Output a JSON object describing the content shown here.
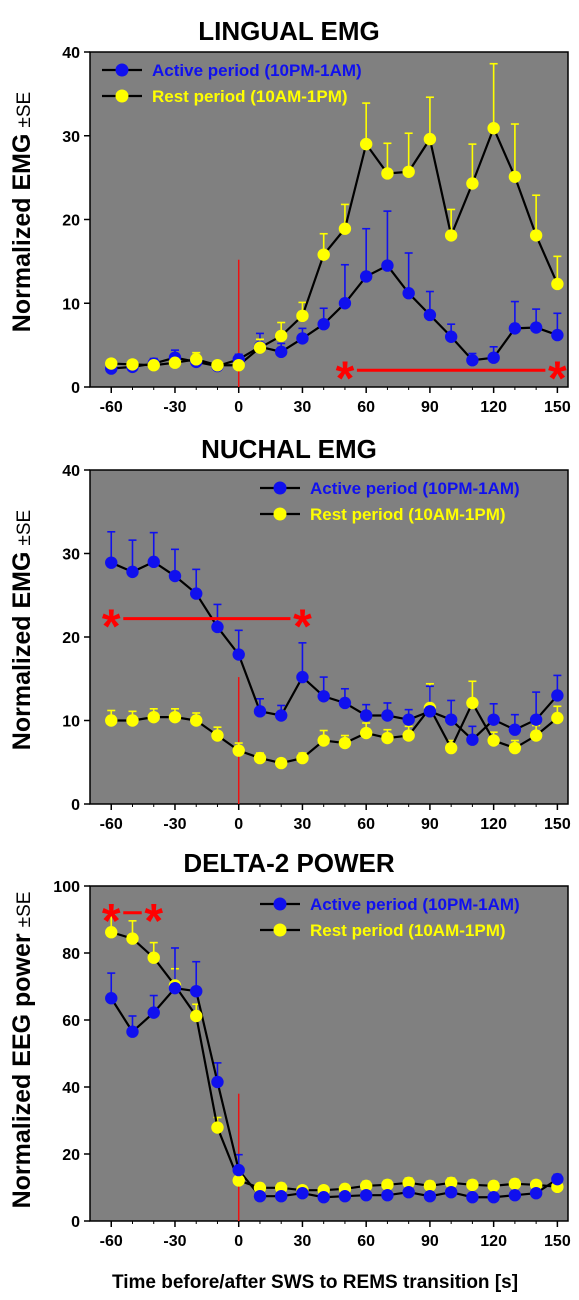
{
  "figure": {
    "xlabel": "Time before/after SWS to REMS transition [s]",
    "colors": {
      "plot_bg": "#808080",
      "active": "#1010ee",
      "rest": "#ffff00",
      "line": "#000000",
      "marker": "#ee1111",
      "sig": "#ff0000"
    }
  },
  "chart_data": [
    {
      "type": "line",
      "title": "LINGUAL EMG",
      "ylabel": "Normalized EMG",
      "ylabel_suffix": "±SE",
      "xlim": [
        -70,
        155
      ],
      "ylim": [
        0,
        40
      ],
      "xticks": [
        -60,
        -30,
        0,
        30,
        60,
        90,
        120,
        150
      ],
      "yticks": [
        0,
        10,
        20,
        30,
        40
      ],
      "legend_position": "top-left",
      "x": [
        -60,
        -50,
        -40,
        -30,
        -20,
        -10,
        0,
        10,
        20,
        30,
        40,
        50,
        60,
        70,
        80,
        90,
        100,
        110,
        120,
        130,
        140,
        150
      ],
      "series": [
        {
          "name": "Active period (10PM-1AM)",
          "color_key": "active",
          "values": [
            2.2,
            2.4,
            2.8,
            3.5,
            3.0,
            2.5,
            3.3,
            4.8,
            4.2,
            5.8,
            7.5,
            10.0,
            13.2,
            14.5,
            11.2,
            8.6,
            6.0,
            3.2,
            3.5,
            7.0,
            7.1,
            6.2
          ],
          "errors": [
            0.5,
            0.4,
            0.6,
            0.9,
            0.7,
            0.5,
            0.6,
            1.6,
            1.0,
            1.2,
            1.9,
            4.6,
            5.7,
            6.5,
            4.8,
            2.8,
            1.5,
            0.8,
            1.3,
            3.2,
            2.2,
            2.6
          ]
        },
        {
          "name": "Rest period (10AM-1PM)",
          "color_key": "rest",
          "values": [
            2.8,
            2.7,
            2.6,
            2.9,
            3.3,
            2.6,
            2.6,
            4.7,
            6.1,
            8.5,
            15.8,
            18.9,
            29.0,
            25.5,
            25.7,
            29.6,
            18.1,
            24.3,
            30.9,
            25.1,
            18.1,
            12.3
          ],
          "errors": [
            0.4,
            0.3,
            0.4,
            0.4,
            0.8,
            0.3,
            0.5,
            1.0,
            1.6,
            1.6,
            2.5,
            2.9,
            4.9,
            3.6,
            4.6,
            5.0,
            3.1,
            4.7,
            7.7,
            6.3,
            4.8,
            3.3
          ]
        }
      ],
      "significance": {
        "from": 50,
        "to": 150,
        "y": 2.0,
        "label_left": "*",
        "label_right": "*"
      }
    },
    {
      "type": "line",
      "title": "NUCHAL EMG",
      "ylabel": "Normalized EMG",
      "ylabel_suffix": "±SE",
      "xlim": [
        -70,
        155
      ],
      "ylim": [
        0,
        40
      ],
      "xticks": [
        -60,
        -30,
        0,
        30,
        60,
        90,
        120,
        150
      ],
      "yticks": [
        0,
        10,
        20,
        30,
        40
      ],
      "legend_position": "top-right",
      "x": [
        -60,
        -50,
        -40,
        -30,
        -20,
        -10,
        0,
        10,
        20,
        30,
        40,
        50,
        60,
        70,
        80,
        90,
        100,
        110,
        120,
        130,
        140,
        150
      ],
      "series": [
        {
          "name": "Active period (10PM-1AM)",
          "color_key": "active",
          "values": [
            28.9,
            27.8,
            29.0,
            27.3,
            25.2,
            21.2,
            17.9,
            11.1,
            10.6,
            15.2,
            12.9,
            12.1,
            10.6,
            10.6,
            10.1,
            11.1,
            10.1,
            7.7,
            10.1,
            8.9,
            10.1,
            13.0
          ],
          "errors": [
            3.7,
            3.8,
            3.5,
            3.2,
            2.9,
            2.7,
            2.9,
            1.5,
            1.2,
            4.1,
            2.3,
            1.7,
            1.3,
            1.5,
            1.2,
            3.0,
            2.3,
            1.6,
            1.9,
            1.8,
            3.3,
            2.4
          ]
        },
        {
          "name": "Rest period (10AM-1PM)",
          "color_key": "rest",
          "values": [
            10.0,
            10.0,
            10.4,
            10.4,
            10.0,
            8.2,
            6.4,
            5.5,
            4.9,
            5.5,
            7.6,
            7.3,
            8.5,
            7.9,
            8.2,
            11.5,
            6.7,
            12.1,
            7.6,
            6.7,
            8.2,
            10.3
          ],
          "errors": [
            1.2,
            1.1,
            1.0,
            1.0,
            0.9,
            1.0,
            0.9,
            0.6,
            0.5,
            0.6,
            1.2,
            0.9,
            1.2,
            1.0,
            1.1,
            2.9,
            0.9,
            2.6,
            1.0,
            0.9,
            1.2,
            1.4
          ]
        }
      ],
      "significance": {
        "from": -60,
        "to": 30,
        "y": 22.2,
        "label_left": "*",
        "label_right": "*"
      }
    },
    {
      "type": "line",
      "title": "DELTA-2 POWER",
      "ylabel": "Normalized EEG power",
      "ylabel_suffix": "±SE",
      "xlim": [
        -70,
        155
      ],
      "ylim": [
        0,
        100
      ],
      "xticks": [
        -60,
        -30,
        0,
        30,
        60,
        90,
        120,
        150
      ],
      "yticks": [
        0,
        20,
        40,
        60,
        80,
        100
      ],
      "legend_position": "top-right",
      "x": [
        -60,
        -50,
        -40,
        -30,
        -20,
        -10,
        0,
        10,
        20,
        30,
        40,
        50,
        60,
        70,
        80,
        90,
        100,
        110,
        120,
        130,
        140,
        150
      ],
      "series": [
        {
          "name": "Active period (10PM-1AM)",
          "color_key": "active",
          "values": [
            66.5,
            56.5,
            62.2,
            69.5,
            68.6,
            41.5,
            15.2,
            7.4,
            7.4,
            8.3,
            7.1,
            7.4,
            7.7,
            7.7,
            8.6,
            7.4,
            8.6,
            7.1,
            7.1,
            7.7,
            8.3,
            12.5
          ],
          "errors": [
            7.5,
            4.7,
            5.1,
            12.0,
            8.8,
            5.7,
            4.6,
            1.2,
            1.2,
            1.1,
            1.0,
            1.0,
            1.1,
            1.1,
            1.2,
            1.1,
            1.2,
            1.0,
            1.0,
            1.1,
            1.1,
            1.4
          ]
        },
        {
          "name": "Rest period (10AM-1PM)",
          "color_key": "rest",
          "values": [
            86.2,
            84.3,
            78.6,
            70.3,
            61.2,
            27.9,
            12.1,
            9.9,
            9.9,
            9.2,
            9.2,
            9.6,
            10.5,
            10.8,
            11.4,
            10.5,
            11.4,
            10.8,
            10.5,
            11.1,
            10.8,
            10.2
          ],
          "errors": [
            5.0,
            5.3,
            4.5,
            5.0,
            3.5,
            3.0,
            2.5,
            1.2,
            1.3,
            1.0,
            1.1,
            1.1,
            1.3,
            1.3,
            1.4,
            1.3,
            1.4,
            1.3,
            1.2,
            1.3,
            1.2,
            1.2
          ]
        }
      ],
      "significance": {
        "from": -60,
        "to": -40,
        "y": 92.0,
        "label_left": "*",
        "label_right": "*"
      }
    }
  ]
}
